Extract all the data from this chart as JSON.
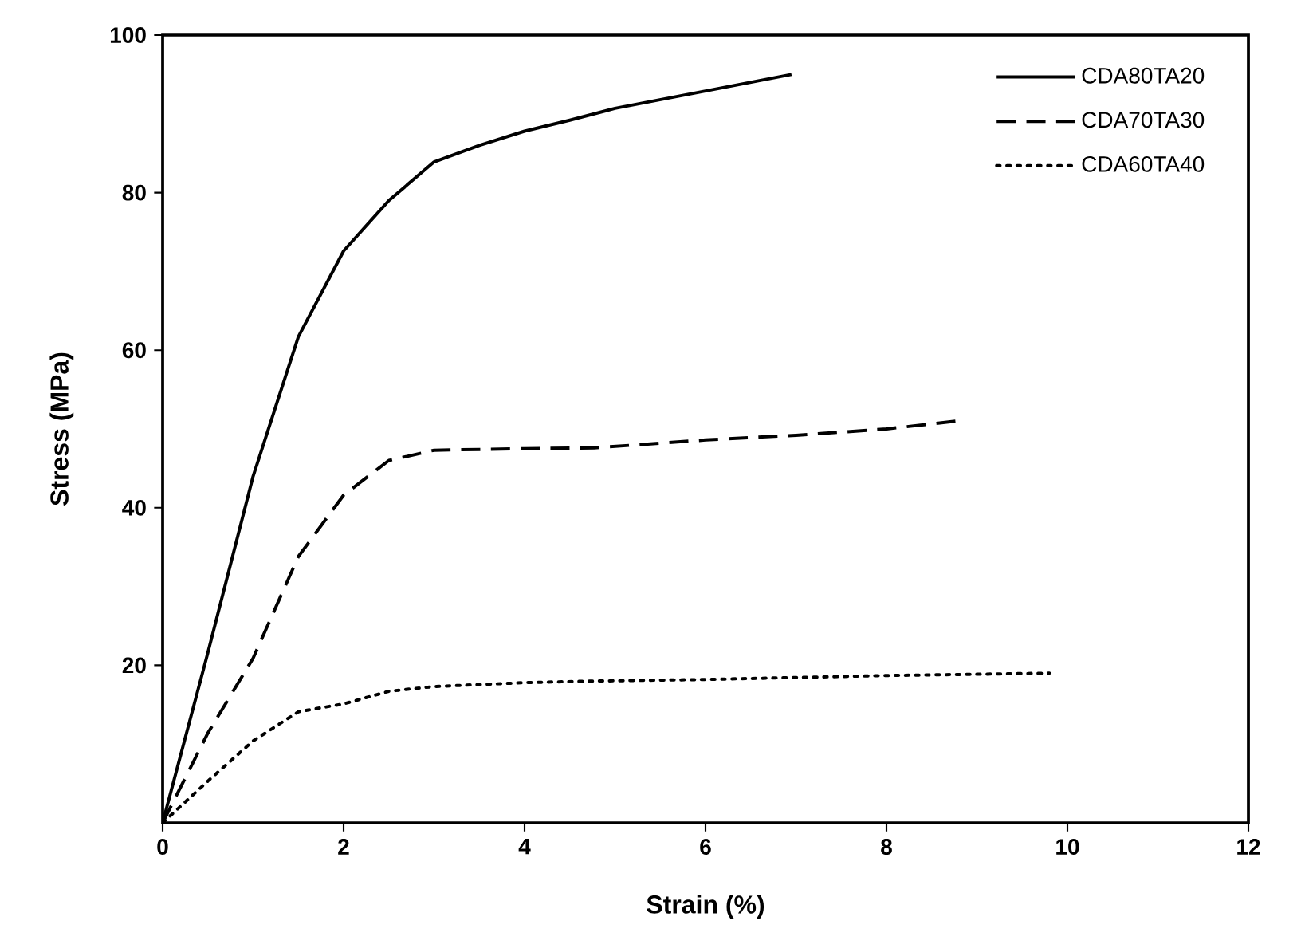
{
  "chart_data": {
    "type": "line",
    "xlabel": "Strain (%)",
    "ylabel": "Stress (MPa)",
    "xlim": [
      0,
      12
    ],
    "ylim": [
      0,
      100
    ],
    "xticks": [
      0,
      2,
      4,
      6,
      8,
      10,
      12
    ],
    "yticks": [
      20,
      40,
      60,
      80,
      100
    ],
    "grid": false,
    "legend": "top right",
    "series": [
      {
        "name": "CDA80TA20",
        "color": "#000000",
        "line_style": "solid",
        "x": [
          0,
          0.5,
          1,
          1.5,
          2,
          2.5,
          3,
          3.5,
          4,
          4.5,
          5,
          6,
          6.95
        ],
        "values": [
          0,
          21.6,
          44,
          61.7,
          72.6,
          79,
          83.9,
          86,
          87.8,
          89.2,
          90.7,
          92.9,
          95
        ]
      },
      {
        "name": "CDA70TA30",
        "color": "#000000",
        "line_style": "dashed",
        "x": [
          0,
          0.5,
          1,
          1.5,
          2,
          2.5,
          3,
          4,
          4.77,
          6,
          7,
          8,
          8.77
        ],
        "values": [
          0,
          11.4,
          20.9,
          33.8,
          41.6,
          46,
          47.3,
          47.5,
          47.6,
          48.6,
          49.2,
          50,
          51
        ]
      },
      {
        "name": "CDA60TA40",
        "color": "#000000",
        "line_style": "dotted",
        "x": [
          0,
          0.5,
          1,
          1.5,
          2,
          2.5,
          3,
          4,
          4.77,
          6,
          8,
          9.8
        ],
        "values": [
          0,
          5.3,
          10.4,
          14.1,
          15.1,
          16.7,
          17.3,
          17.8,
          18,
          18.2,
          18.7,
          19
        ]
      }
    ]
  }
}
